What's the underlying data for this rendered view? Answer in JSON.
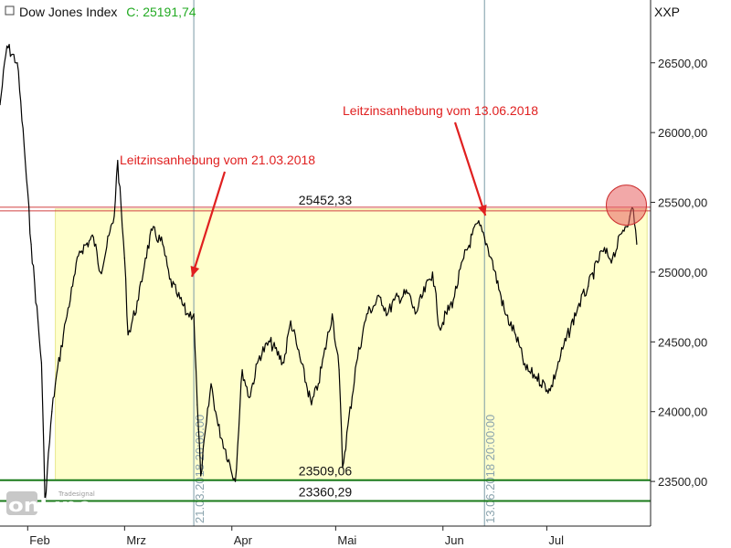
{
  "header": {
    "title": "Dow Jones Index",
    "close_label": "C:",
    "close_value": "25191,74",
    "axis_label": "XXP"
  },
  "logo": {
    "brand": "onLine",
    "sub": "Tradesignal"
  },
  "colors": {
    "close_value": "#22aa22",
    "annotation": "#e02020",
    "range_fill": "#ffffcc",
    "range_stroke": "#e8e890",
    "resistance": "#d04040",
    "support": "#1a7a1a",
    "event_line": "#7a9aa6",
    "price": "#000000",
    "highlight_circle": "#e86060"
  },
  "chart_data": {
    "type": "line",
    "title": "Dow Jones Index",
    "ylim": [
      23180,
      26950
    ],
    "y_ticks": [
      23500,
      24000,
      24500,
      25000,
      25500,
      26000,
      26500
    ],
    "y_tick_labels": [
      "23500,00",
      "24000,00",
      "24500,00",
      "25000,00",
      "25500,00",
      "26000,00",
      "26500,00"
    ],
    "x_ticks": [
      {
        "label": "Feb",
        "date": "2018-02-01"
      },
      {
        "label": "Mrz",
        "date": "2018-03-01"
      },
      {
        "label": "Apr",
        "date": "2018-04-01"
      },
      {
        "label": "Mai",
        "date": "2018-05-01"
      },
      {
        "label": "Jun",
        "date": "2018-06-01"
      },
      {
        "label": "Jul",
        "date": "2018-07-01"
      }
    ],
    "xlim": [
      "2018-01-24",
      "2018-07-31"
    ],
    "grid": false,
    "legend": "none",
    "series": [
      {
        "x": [
          "2018-01-24",
          "2018-01-26",
          "2018-01-29",
          "2018-01-31",
          "2018-02-02",
          "2018-02-05",
          "2018-02-06",
          "2018-02-08",
          "2018-02-09",
          "2018-02-12",
          "2018-02-14",
          "2018-02-16",
          "2018-02-20",
          "2018-02-22",
          "2018-02-26",
          "2018-02-27",
          "2018-03-01",
          "2018-03-02",
          "2018-03-05",
          "2018-03-07",
          "2018-03-09",
          "2018-03-12",
          "2018-03-14",
          "2018-03-16",
          "2018-03-19",
          "2018-03-21",
          "2018-03-22",
          "2018-03-23",
          "2018-03-26",
          "2018-03-28",
          "2018-04-02",
          "2018-04-04",
          "2018-04-06",
          "2018-04-09",
          "2018-04-12",
          "2018-04-16",
          "2018-04-18",
          "2018-04-20",
          "2018-04-24",
          "2018-04-26",
          "2018-04-30",
          "2018-05-02",
          "2018-05-03",
          "2018-05-07",
          "2018-05-10",
          "2018-05-14",
          "2018-05-16",
          "2018-05-18",
          "2018-05-22",
          "2018-05-24",
          "2018-05-29",
          "2018-05-31",
          "2018-06-04",
          "2018-06-07",
          "2018-06-11",
          "2018-06-13",
          "2018-06-15",
          "2018-06-19",
          "2018-06-22",
          "2018-06-25",
          "2018-06-28",
          "2018-07-02",
          "2018-07-05",
          "2018-07-10",
          "2018-07-13",
          "2018-07-17",
          "2018-07-20",
          "2018-07-23",
          "2018-07-25",
          "2018-07-26",
          "2018-07-27"
        ],
        "y": [
          26200,
          26620,
          26500,
          25900,
          25200,
          24350,
          23360,
          24000,
          24200,
          24650,
          24900,
          25150,
          25250,
          25000,
          25400,
          25800,
          25100,
          24550,
          24800,
          25100,
          25300,
          25200,
          24950,
          24850,
          24700,
          24700,
          24050,
          23540,
          24200,
          23900,
          23500,
          24300,
          24100,
          24400,
          24500,
          24350,
          24650,
          24450,
          24050,
          24200,
          24700,
          24300,
          23600,
          24350,
          24700,
          24820,
          24700,
          24800,
          24850,
          24700,
          25000,
          24600,
          24800,
          25100,
          25350,
          25250,
          25100,
          24700,
          24550,
          24300,
          24250,
          24150,
          24400,
          24750,
          24900,
          25150,
          25100,
          25300,
          25400,
          25450,
          25200
        ]
      }
    ],
    "levels": [
      {
        "value": 25452.33,
        "label": "25452,33",
        "kind": "resistance"
      },
      {
        "value": 23509.06,
        "label": "23509,06",
        "kind": "support"
      },
      {
        "value": 23360.29,
        "label": "23360,29",
        "kind": "support"
      }
    ],
    "range_box": {
      "from": "2018-02-09",
      "to": "2018-07-30",
      "low": 23509.06,
      "high": 25452.33
    },
    "events": [
      {
        "date": "2018-03-21",
        "label": "21.03.2018 20:00:00",
        "annotation": "Leitzinsanhebung vom 21.03.2018"
      },
      {
        "date": "2018-06-13",
        "label": "13.06.2018 20:00:00",
        "annotation": "Leitzinsanhebung vom 13.06.2018"
      }
    ]
  }
}
